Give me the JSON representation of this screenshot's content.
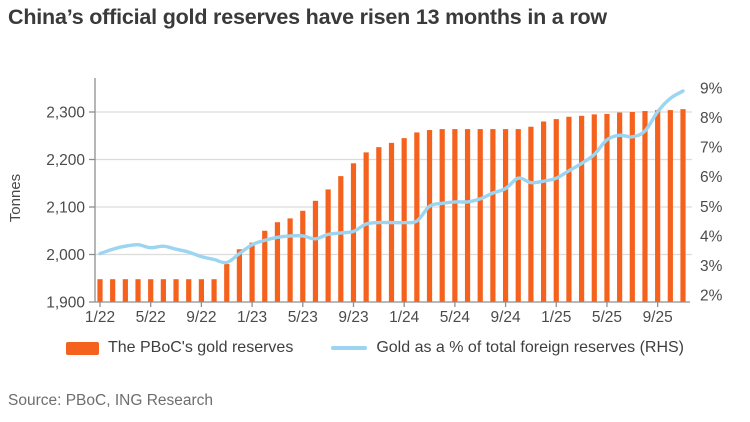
{
  "title": "China’s official gold reserves have risen 13 months in a row",
  "source": "Source: PBoC, ING Research",
  "colors": {
    "bar": "#f4621d",
    "line": "#9bd5f1",
    "grid": "#dcdcdc",
    "axis": "#8f8f8f",
    "tick_text": "#4b4b4b",
    "title_text": "#3a3a3a",
    "source_text": "#6e6e6e"
  },
  "chart_data": {
    "type": "bar",
    "title": "China’s official gold reserves have risen 13 months in a row",
    "grid": true,
    "legend_position": "bottom",
    "x": [
      "1/22",
      "2/22",
      "3/22",
      "4/22",
      "5/22",
      "6/22",
      "7/22",
      "8/22",
      "9/22",
      "10/22",
      "11/22",
      "12/22",
      "1/23",
      "2/23",
      "3/23",
      "4/23",
      "5/23",
      "6/23",
      "7/23",
      "8/23",
      "9/23",
      "10/23",
      "11/23",
      "12/23",
      "1/24",
      "2/24",
      "3/24",
      "4/24",
      "5/24",
      "6/24",
      "7/24",
      "8/24",
      "9/24",
      "10/24",
      "11/24",
      "12/24",
      "1/25",
      "2/25",
      "3/25",
      "4/25",
      "5/25",
      "6/25",
      "7/25",
      "8/25",
      "9/25",
      "10/25",
      "11/25"
    ],
    "x_tick_labels": [
      "1/22",
      "5/22",
      "9/22",
      "1/23",
      "5/23",
      "9/23",
      "1/24",
      "5/24",
      "9/24",
      "1/25",
      "5/25",
      "9/25"
    ],
    "series": [
      {
        "name": "The PBoC's gold reserves",
        "type": "bar",
        "yaxis": "left",
        "color": "#f4621d",
        "values": [
          1948,
          1948,
          1948,
          1948,
          1948,
          1948,
          1948,
          1948,
          1948,
          1948,
          1980,
          2011,
          2025,
          2050,
          2068,
          2076,
          2092,
          2113,
          2137,
          2165,
          2192,
          2215,
          2226,
          2235,
          2245,
          2257,
          2262,
          2264,
          2264,
          2264,
          2264,
          2264,
          2264,
          2264,
          2269,
          2280,
          2285,
          2290,
          2292,
          2295,
          2296,
          2299,
          2300,
          2302,
          2304,
          2304,
          2306
        ]
      },
      {
        "name": "Gold as a % of total foreign reserves (RHS)",
        "type": "line",
        "yaxis": "right",
        "color": "#9bd5f1",
        "values": [
          3.4,
          3.55,
          3.65,
          3.7,
          3.6,
          3.65,
          3.55,
          3.45,
          3.3,
          3.2,
          3.1,
          3.4,
          3.7,
          3.85,
          3.95,
          4.0,
          4.0,
          3.9,
          4.05,
          4.1,
          4.15,
          4.4,
          4.45,
          4.45,
          4.45,
          4.5,
          5.0,
          5.1,
          5.15,
          5.15,
          5.25,
          5.45,
          5.6,
          5.95,
          5.8,
          5.85,
          5.95,
          6.2,
          6.45,
          6.75,
          7.25,
          7.4,
          7.35,
          7.55,
          8.2,
          8.65,
          8.9
        ]
      }
    ],
    "left_axis": {
      "label": "Tonnes",
      "min": 1900,
      "max": 2370,
      "tick_values": [
        1900,
        2000,
        2100,
        2200,
        2300
      ],
      "tick_labels": [
        "1,900",
        "2,000",
        "2,100",
        "2,200",
        "2,300"
      ]
    },
    "right_axis": {
      "label": "Gold as a % of total foreign reserves",
      "min": 2,
      "max": 9.3,
      "tick_values": [
        2,
        3,
        4,
        5,
        6,
        7,
        8,
        9
      ],
      "tick_labels": [
        "2%",
        "3%",
        "4%",
        "5%",
        "6%",
        "7%",
        "8%",
        "9%"
      ]
    }
  }
}
